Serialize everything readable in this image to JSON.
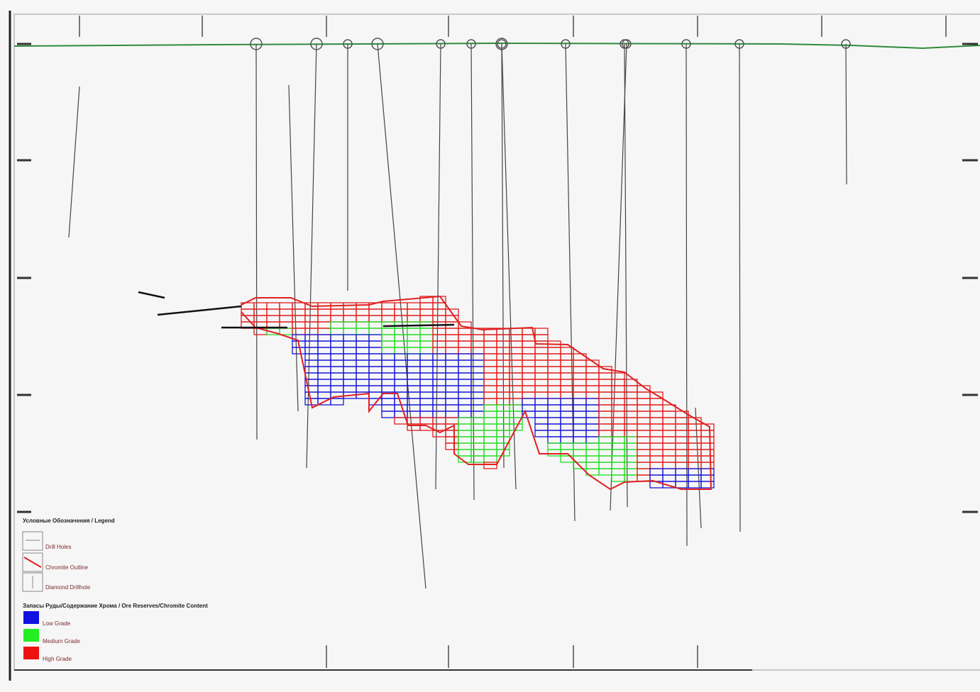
{
  "legend": {
    "title": "Условные Обозначения / Legend",
    "items": [
      "Drill Holes",
      "Chromite Outline",
      "Diamond Drillhole"
    ],
    "grade_title": "Запасы Руды/Содержание Хрома / Ore Reserves/Chromite Content",
    "grades": [
      "Low Grade",
      "Medium Grade",
      "High Grade"
    ]
  }
}
